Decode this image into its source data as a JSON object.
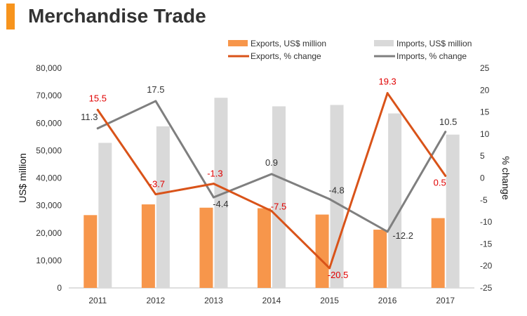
{
  "header": {
    "title": "Merchandise Trade"
  },
  "colors": {
    "exports_bar": "#F7964B",
    "imports_bar": "#D9D9D9",
    "exports_line": "#D95319",
    "imports_line": "#7F7F7F",
    "title_accent": "#F7941D",
    "exports_label": "#E00000",
    "imports_label": "#333333"
  },
  "chart_data": {
    "type": "bar",
    "title": "",
    "categories": [
      "2011",
      "2012",
      "2013",
      "2014",
      "2015",
      "2016",
      "2017"
    ],
    "series": [
      {
        "name": "Exports, US$ million",
        "type": "bar",
        "axis": "left",
        "values": [
          26500,
          30400,
          29200,
          29000,
          26700,
          21200,
          25400
        ]
      },
      {
        "name": "Imports, US$ million",
        "type": "bar",
        "axis": "left",
        "values": [
          52800,
          58800,
          69200,
          66100,
          66600,
          63500,
          55800
        ]
      },
      {
        "name": "Exports, % change",
        "type": "line",
        "axis": "right",
        "values": [
          15.5,
          -3.7,
          -1.3,
          -7.5,
          -20.5,
          19.3,
          0.5
        ],
        "labels": [
          "15.5",
          "-3.7",
          "-1.3",
          "-7.5",
          "-20.5",
          "19.3",
          "0.5"
        ]
      },
      {
        "name": "Imports, % change",
        "type": "line",
        "axis": "right",
        "values": [
          11.3,
          17.5,
          -4.4,
          0.9,
          -4.8,
          -12.2,
          10.5
        ],
        "labels": [
          "11.3",
          "17.5",
          "-4.4",
          "0.9",
          "-4.8",
          "-12.2",
          "10.5"
        ]
      }
    ],
    "ylabel": "US$ million",
    "y2label": "% change",
    "ylim": [
      0,
      80000
    ],
    "y2lim": [
      -25,
      25
    ],
    "yticks": [
      "0",
      "10,000",
      "20,000",
      "30,000",
      "40,000",
      "50,000",
      "60,000",
      "70,000",
      "80,000"
    ],
    "y2ticks": [
      "-25",
      "-20",
      "-15",
      "-10",
      "-5",
      "0",
      "5",
      "10",
      "15",
      "20",
      "25"
    ],
    "grid": false,
    "legend_position": "top"
  }
}
